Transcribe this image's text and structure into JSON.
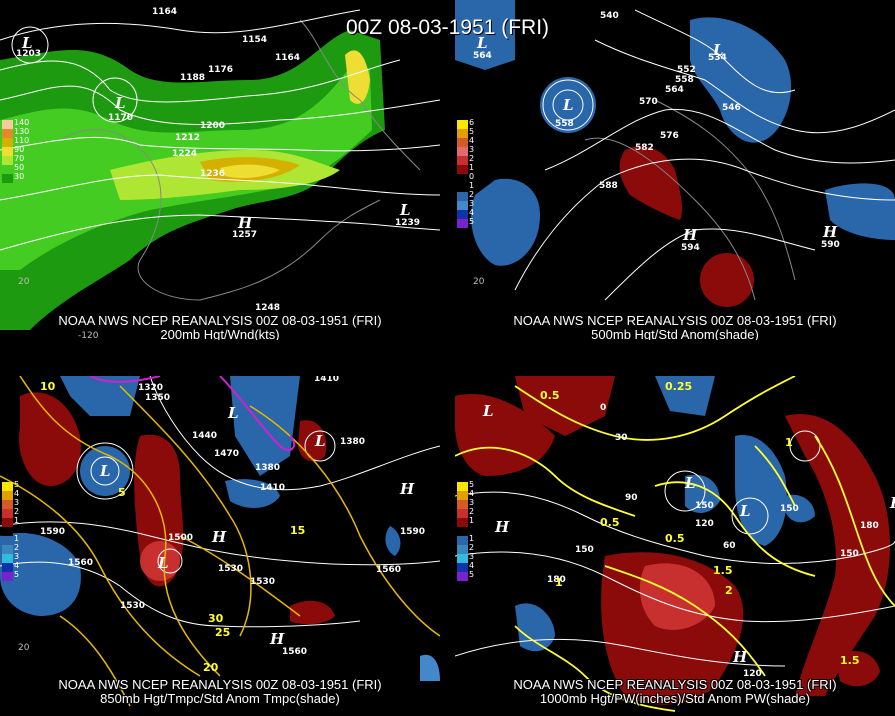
{
  "main_title": "00Z 08-03-1951 (FRI)",
  "panels": [
    {
      "id": "p200",
      "title_line1": "NOAA NWS NCEP REANALYSIS 00Z 08-03-1951 (FRI)",
      "title_line2": "200mb Hgt/Wnd(kts)",
      "legend": [
        {
          "label": "140",
          "color": "#f7c9a0"
        },
        {
          "label": "130",
          "color": "#e38a2a"
        },
        {
          "label": "110",
          "color": "#d4b000"
        },
        {
          "label": "90",
          "color": "#eedd33"
        },
        {
          "label": "70",
          "color": "#aee633"
        },
        {
          "label": "50",
          "color": "#44cc22"
        },
        {
          "label": "30",
          "color": "#1d9a10"
        }
      ],
      "labels": [
        "1164",
        "1154",
        "1176",
        "1164",
        "1188",
        "1200",
        "1212",
        "1224",
        "1236",
        "1248",
        "1203",
        "1170",
        "1257",
        "1239"
      ],
      "coords": [
        "-120",
        "20"
      ],
      "highs_lows": [
        "L",
        "L",
        "H",
        "L"
      ]
    },
    {
      "id": "p500",
      "title_line1": "NOAA NWS NCEP REANALYSIS 00Z 08-03-1951 (FRI)",
      "title_line2": "500mb Hgt/Std Anom(shade)",
      "legend": [
        {
          "label": "6",
          "color": "#ffe600"
        },
        {
          "label": "5",
          "color": "#e2a000"
        },
        {
          "label": "4",
          "color": "#d45a2a"
        },
        {
          "label": "3",
          "color": "#e26a6a"
        },
        {
          "label": "2",
          "color": "#c83030"
        },
        {
          "label": "1",
          "color": "#8b0a0a"
        },
        {
          "label": "0",
          "color": "#000000"
        },
        {
          "label": "1",
          "color": "#000000"
        },
        {
          "label": "2",
          "color": "#2a66aa"
        },
        {
          "label": "3",
          "color": "#4488cc"
        },
        {
          "label": "4",
          "color": "#1133aa"
        },
        {
          "label": "5",
          "color": "#7722cc"
        }
      ],
      "labels": [
        "540",
        "552",
        "558",
        "564",
        "570",
        "576",
        "582",
        "588",
        "534",
        "546",
        "558",
        "564",
        "594",
        "590"
      ],
      "coords": [
        "20"
      ],
      "highs_lows": [
        "L",
        "L",
        "L",
        "H",
        "H"
      ]
    },
    {
      "id": "p850",
      "title_line1": "NOAA NWS NCEP REANALYSIS 00Z 08-03-1951 (FRI)",
      "title_line2": "850mb Hgt/Tmpc/Std Anom Tmpc(shade)",
      "legend": [
        {
          "label": "5",
          "color": "#ffe600"
        },
        {
          "label": "4",
          "color": "#e2a000"
        },
        {
          "label": "3",
          "color": "#d45a2a"
        },
        {
          "label": "2",
          "color": "#c83030"
        },
        {
          "label": "1",
          "color": "#8b0a0a"
        },
        {
          "label": "",
          "color": "#000000"
        },
        {
          "label": "1",
          "color": "#2a66aa"
        },
        {
          "label": "2",
          "color": "#3a88bb"
        },
        {
          "label": "3",
          "color": "#33bbdd"
        },
        {
          "label": "4",
          "color": "#1133aa"
        },
        {
          "label": "5",
          "color": "#7722cc"
        }
      ],
      "labels": [
        "1320",
        "1350",
        "1410",
        "1380",
        "1440",
        "1470",
        "1380",
        "1410",
        "1500",
        "1530",
        "1590",
        "1560",
        "1530",
        "1530",
        "1590",
        "1560",
        "1560",
        "10",
        "5",
        "15",
        "30",
        "25",
        "20"
      ],
      "coords": [
        "20"
      ],
      "highs_lows": [
        "L",
        "L",
        "L",
        "H",
        "H",
        "L",
        "H"
      ]
    },
    {
      "id": "p1000",
      "title_line1": "NOAA NWS NCEP REANALYSIS 00Z 08-03-1951 (FRI)",
      "title_line2": "1000mb Hgt/PW(inches)/Std Anom PW(shade)",
      "legend": [
        {
          "label": "5",
          "color": "#ffe600"
        },
        {
          "label": "4",
          "color": "#e2a000"
        },
        {
          "label": "3",
          "color": "#d45a2a"
        },
        {
          "label": "2",
          "color": "#c83030"
        },
        {
          "label": "1",
          "color": "#8b0a0a"
        },
        {
          "label": "",
          "color": "#000000"
        },
        {
          "label": "1",
          "color": "#2a66aa"
        },
        {
          "label": "2",
          "color": "#3a88bb"
        },
        {
          "label": "3",
          "color": "#33bbdd"
        },
        {
          "label": "4",
          "color": "#1133aa"
        },
        {
          "label": "5",
          "color": "#7722cc"
        }
      ],
      "labels": [
        "0.5",
        "0",
        "30",
        "90",
        "150",
        "120",
        "60",
        "150",
        "180",
        "150",
        "120",
        "180",
        "150",
        "0.25",
        "0.5",
        "1",
        "1.5",
        "0.5",
        "1",
        "1.5",
        "2"
      ],
      "coords": [],
      "highs_lows": [
        "L",
        "H",
        "L",
        "L",
        "H",
        "H"
      ]
    }
  ]
}
